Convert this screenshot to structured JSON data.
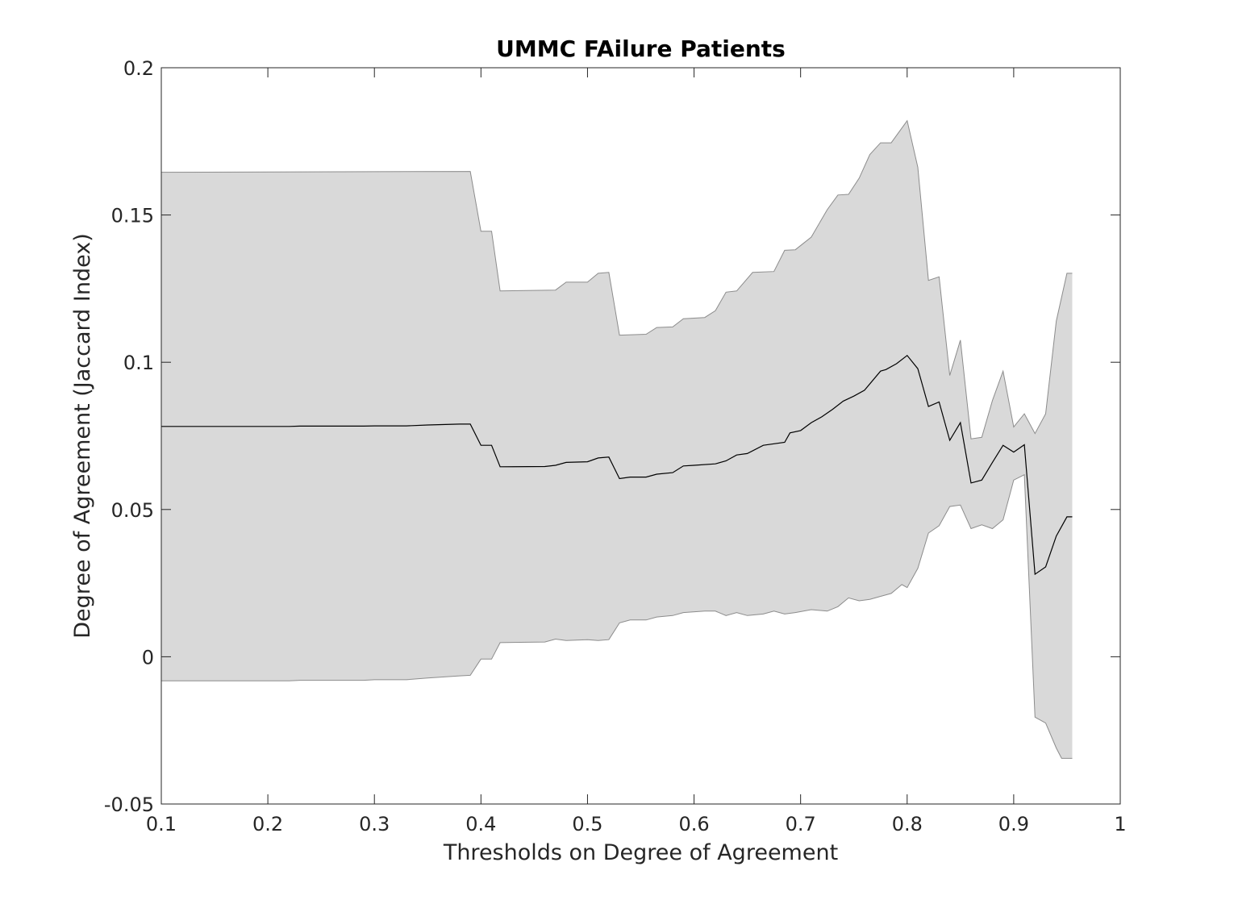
{
  "chart_data": {
    "type": "area",
    "title": "UMMC FAilure Patients",
    "xlabel": "Thresholds on Degree of Agreement",
    "ylabel": "Degree of Agreement (Jaccard Index)",
    "xlim": [
      0.1,
      1
    ],
    "ylim": [
      -0.05,
      0.2
    ],
    "xticks": [
      "0.1",
      "0.2",
      "0.3",
      "0.4",
      "0.5",
      "0.6",
      "0.7",
      "0.8",
      "0.9",
      "1"
    ],
    "yticks": [
      "-0.05",
      "0",
      "0.05",
      "0.1",
      "0.15",
      "0.2"
    ],
    "grid": false,
    "legend": false,
    "colors": {
      "band": "#d9d9d9",
      "band_edge": "#8c8c8c",
      "mean": "#000000",
      "axes": "#262626"
    },
    "series": [
      {
        "role": "mean",
        "points": [
          [
            0.1,
            0.0782
          ],
          [
            0.22,
            0.0782
          ],
          [
            0.23,
            0.0783
          ],
          [
            0.29,
            0.0783
          ],
          [
            0.3,
            0.0784
          ],
          [
            0.33,
            0.0784
          ],
          [
            0.35,
            0.0787
          ],
          [
            0.38,
            0.079
          ],
          [
            0.39,
            0.079
          ],
          [
            0.4,
            0.0718
          ],
          [
            0.41,
            0.0718
          ],
          [
            0.418,
            0.0645
          ],
          [
            0.46,
            0.0646
          ],
          [
            0.47,
            0.065
          ],
          [
            0.48,
            0.066
          ],
          [
            0.5,
            0.0662
          ],
          [
            0.51,
            0.0675
          ],
          [
            0.52,
            0.0678
          ],
          [
            0.53,
            0.0605
          ],
          [
            0.54,
            0.061
          ],
          [
            0.555,
            0.061
          ],
          [
            0.565,
            0.062
          ],
          [
            0.58,
            0.0625
          ],
          [
            0.59,
            0.0648
          ],
          [
            0.6,
            0.065
          ],
          [
            0.62,
            0.0655
          ],
          [
            0.63,
            0.0665
          ],
          [
            0.64,
            0.0685
          ],
          [
            0.65,
            0.069
          ],
          [
            0.665,
            0.0718
          ],
          [
            0.685,
            0.0728
          ],
          [
            0.69,
            0.076
          ],
          [
            0.7,
            0.0768
          ],
          [
            0.71,
            0.0795
          ],
          [
            0.72,
            0.0815
          ],
          [
            0.73,
            0.084
          ],
          [
            0.74,
            0.0868
          ],
          [
            0.75,
            0.0885
          ],
          [
            0.76,
            0.0905
          ],
          [
            0.775,
            0.097
          ],
          [
            0.78,
            0.0975
          ],
          [
            0.79,
            0.0995
          ],
          [
            0.8,
            0.1023
          ],
          [
            0.81,
            0.0978
          ],
          [
            0.82,
            0.085
          ],
          [
            0.83,
            0.0865
          ],
          [
            0.84,
            0.0735
          ],
          [
            0.85,
            0.0795
          ],
          [
            0.86,
            0.059
          ],
          [
            0.87,
            0.06
          ],
          [
            0.88,
            0.066
          ],
          [
            0.89,
            0.0718
          ],
          [
            0.9,
            0.0695
          ],
          [
            0.91,
            0.072
          ],
          [
            0.92,
            0.028
          ],
          [
            0.93,
            0.0305
          ],
          [
            0.94,
            0.041
          ],
          [
            0.95,
            0.0475
          ],
          [
            0.955,
            0.0475
          ]
        ]
      },
      {
        "role": "upper",
        "points": [
          [
            0.1,
            0.1645
          ],
          [
            0.39,
            0.1648
          ],
          [
            0.4,
            0.1445
          ],
          [
            0.41,
            0.1445
          ],
          [
            0.418,
            0.1242
          ],
          [
            0.47,
            0.1245
          ],
          [
            0.48,
            0.1272
          ],
          [
            0.5,
            0.1272
          ],
          [
            0.51,
            0.1302
          ],
          [
            0.52,
            0.1305
          ],
          [
            0.53,
            0.1092
          ],
          [
            0.555,
            0.1095
          ],
          [
            0.565,
            0.1118
          ],
          [
            0.58,
            0.112
          ],
          [
            0.59,
            0.1148
          ],
          [
            0.61,
            0.1152
          ],
          [
            0.62,
            0.1175
          ],
          [
            0.63,
            0.1238
          ],
          [
            0.64,
            0.1242
          ],
          [
            0.655,
            0.1305
          ],
          [
            0.675,
            0.1308
          ],
          [
            0.685,
            0.138
          ],
          [
            0.695,
            0.1382
          ],
          [
            0.71,
            0.1425
          ],
          [
            0.725,
            0.1518
          ],
          [
            0.735,
            0.1568
          ],
          [
            0.745,
            0.157
          ],
          [
            0.755,
            0.1625
          ],
          [
            0.765,
            0.1705
          ],
          [
            0.775,
            0.1745
          ],
          [
            0.785,
            0.1745
          ],
          [
            0.8,
            0.182
          ],
          [
            0.81,
            0.1662
          ],
          [
            0.82,
            0.1278
          ],
          [
            0.83,
            0.129
          ],
          [
            0.84,
            0.0955
          ],
          [
            0.85,
            0.1075
          ],
          [
            0.86,
            0.074
          ],
          [
            0.87,
            0.0745
          ],
          [
            0.88,
            0.087
          ],
          [
            0.89,
            0.097
          ],
          [
            0.9,
            0.078
          ],
          [
            0.91,
            0.0825
          ],
          [
            0.92,
            0.0758
          ],
          [
            0.93,
            0.0825
          ],
          [
            0.94,
            0.114
          ],
          [
            0.95,
            0.1302
          ],
          [
            0.955,
            0.1302
          ]
        ]
      },
      {
        "role": "lower",
        "points": [
          [
            0.1,
            -0.0082
          ],
          [
            0.22,
            -0.0082
          ],
          [
            0.23,
            -0.008
          ],
          [
            0.29,
            -0.008
          ],
          [
            0.3,
            -0.0078
          ],
          [
            0.33,
            -0.0078
          ],
          [
            0.35,
            -0.0072
          ],
          [
            0.38,
            -0.0065
          ],
          [
            0.39,
            -0.0063
          ],
          [
            0.4,
            -0.0008
          ],
          [
            0.41,
            -0.0008
          ],
          [
            0.418,
            0.0048
          ],
          [
            0.46,
            0.005
          ],
          [
            0.47,
            0.006
          ],
          [
            0.48,
            0.0055
          ],
          [
            0.5,
            0.0058
          ],
          [
            0.51,
            0.0055
          ],
          [
            0.52,
            0.0058
          ],
          [
            0.53,
            0.0115
          ],
          [
            0.54,
            0.0125
          ],
          [
            0.555,
            0.0125
          ],
          [
            0.565,
            0.0135
          ],
          [
            0.58,
            0.014
          ],
          [
            0.59,
            0.015
          ],
          [
            0.61,
            0.0155
          ],
          [
            0.62,
            0.0155
          ],
          [
            0.63,
            0.014
          ],
          [
            0.64,
            0.015
          ],
          [
            0.65,
            0.014
          ],
          [
            0.665,
            0.0145
          ],
          [
            0.675,
            0.0155
          ],
          [
            0.685,
            0.0145
          ],
          [
            0.695,
            0.015
          ],
          [
            0.71,
            0.016
          ],
          [
            0.725,
            0.0155
          ],
          [
            0.735,
            0.017
          ],
          [
            0.745,
            0.02
          ],
          [
            0.755,
            0.019
          ],
          [
            0.765,
            0.0195
          ],
          [
            0.775,
            0.0205
          ],
          [
            0.785,
            0.0215
          ],
          [
            0.795,
            0.0245
          ],
          [
            0.8,
            0.0235
          ],
          [
            0.81,
            0.03
          ],
          [
            0.82,
            0.042
          ],
          [
            0.83,
            0.0445
          ],
          [
            0.84,
            0.051
          ],
          [
            0.85,
            0.0515
          ],
          [
            0.86,
            0.0435
          ],
          [
            0.87,
            0.0448
          ],
          [
            0.88,
            0.0435
          ],
          [
            0.89,
            0.0465
          ],
          [
            0.9,
            0.06
          ],
          [
            0.91,
            0.0618
          ],
          [
            0.92,
            -0.0205
          ],
          [
            0.93,
            -0.0225
          ],
          [
            0.94,
            -0.031
          ],
          [
            0.945,
            -0.0345
          ],
          [
            0.955,
            -0.0345
          ]
        ]
      }
    ]
  }
}
